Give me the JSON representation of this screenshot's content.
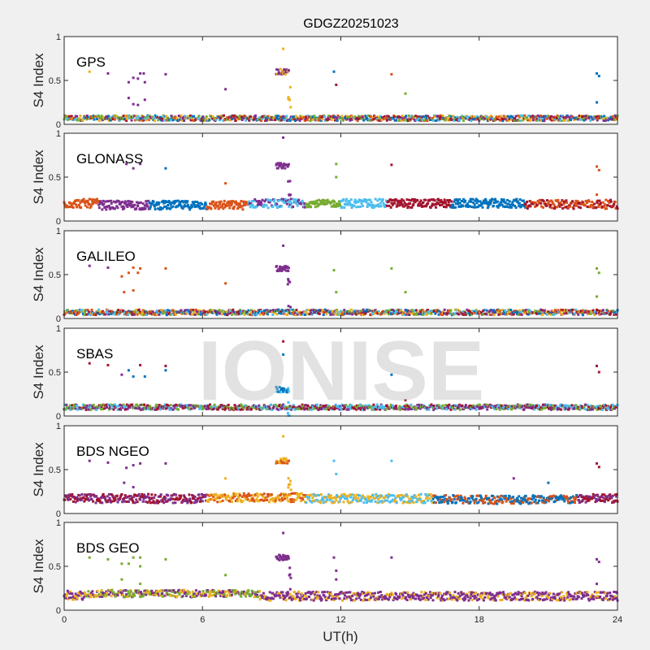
{
  "chart_data": {
    "type": "scatter",
    "title": "GDGZ20251023",
    "xlabel": "UT(h)",
    "ylabel": "S4 Index",
    "xlim": [
      0,
      24
    ],
    "ylim": [
      0,
      1
    ],
    "xticks": [
      "0",
      "6",
      "12",
      "18",
      "24"
    ],
    "yticks": [
      "0",
      "0.5",
      "1"
    ],
    "watermark": "IONISE",
    "colors": {
      "blue": "#0072BD",
      "orange": "#D95319",
      "yellow": "#EDB120",
      "purple": "#7E2F8E",
      "green": "#77AC30",
      "cyan": "#4DBEEE",
      "red": "#A2142F"
    },
    "panels": [
      {
        "name": "GPS",
        "baseline": [
          {
            "from": 0,
            "to": 24,
            "level": 0.07,
            "spread": 0.03,
            "colors": [
              "blue",
              "orange",
              "yellow",
              "purple",
              "green",
              "cyan",
              "red"
            ]
          }
        ],
        "outliers": [
          [
            1.1,
            0.6,
            "yellow"
          ],
          [
            2.8,
            0.48,
            "purple"
          ],
          [
            3.0,
            0.53,
            "purple"
          ],
          [
            3.2,
            0.52,
            "purple"
          ],
          [
            3.3,
            0.58,
            "purple"
          ],
          [
            3.45,
            0.58,
            "purple"
          ],
          [
            3.5,
            0.48,
            "purple"
          ],
          [
            3.5,
            0.28,
            "purple"
          ],
          [
            2.8,
            0.3,
            "purple"
          ],
          [
            3.0,
            0.23,
            "purple"
          ],
          [
            3.2,
            0.22,
            "purple"
          ],
          [
            1.9,
            0.58,
            "purple"
          ],
          [
            4.4,
            0.57,
            "purple"
          ],
          [
            7.0,
            0.4,
            "purple"
          ],
          [
            9.5,
            0.86,
            "yellow"
          ],
          [
            11.7,
            0.6,
            "blue"
          ],
          [
            11.8,
            0.45,
            "red"
          ],
          [
            14.2,
            0.57,
            "orange"
          ],
          [
            14.8,
            0.35,
            "green"
          ],
          [
            23.1,
            0.58,
            "blue"
          ],
          [
            23.2,
            0.55,
            "blue"
          ],
          [
            23.1,
            0.25,
            "blue"
          ]
        ],
        "event": {
          "from": 9.2,
          "to": 9.75,
          "level": 0.6,
          "colors": [
            "yellow",
            "purple"
          ]
        }
      },
      {
        "name": "GLONASS",
        "baseline": [
          {
            "from": 0,
            "to": 1.5,
            "level": 0.2,
            "spread": 0.05,
            "colors": [
              "orange"
            ]
          },
          {
            "from": 1.5,
            "to": 3.7,
            "level": 0.18,
            "spread": 0.05,
            "colors": [
              "purple"
            ]
          },
          {
            "from": 3.7,
            "to": 6.2,
            "level": 0.18,
            "spread": 0.05,
            "colors": [
              "blue"
            ]
          },
          {
            "from": 6.2,
            "to": 8.0,
            "level": 0.18,
            "spread": 0.05,
            "colors": [
              "orange"
            ]
          },
          {
            "from": 8.0,
            "to": 10.5,
            "level": 0.2,
            "spread": 0.05,
            "colors": [
              "purple",
              "cyan"
            ]
          },
          {
            "from": 10.5,
            "to": 12.0,
            "level": 0.2,
            "spread": 0.04,
            "colors": [
              "green"
            ]
          },
          {
            "from": 12.0,
            "to": 14.0,
            "level": 0.2,
            "spread": 0.05,
            "colors": [
              "cyan"
            ]
          },
          {
            "from": 14.0,
            "to": 16.8,
            "level": 0.2,
            "spread": 0.05,
            "colors": [
              "red"
            ]
          },
          {
            "from": 16.8,
            "to": 20.0,
            "level": 0.2,
            "spread": 0.05,
            "colors": [
              "blue"
            ]
          },
          {
            "from": 20.0,
            "to": 24,
            "level": 0.19,
            "spread": 0.05,
            "colors": [
              "orange",
              "red"
            ]
          }
        ],
        "outliers": [
          [
            2.7,
            0.65,
            "purple"
          ],
          [
            3.0,
            0.6,
            "purple"
          ],
          [
            3.3,
            0.65,
            "purple"
          ],
          [
            4.4,
            0.6,
            "blue"
          ],
          [
            7.0,
            0.43,
            "orange"
          ],
          [
            9.5,
            0.95,
            "purple"
          ],
          [
            11.8,
            0.65,
            "green"
          ],
          [
            11.8,
            0.5,
            "green"
          ],
          [
            14.2,
            0.64,
            "red"
          ],
          [
            23.1,
            0.62,
            "orange"
          ],
          [
            23.2,
            0.58,
            "orange"
          ],
          [
            23.1,
            0.3,
            "orange"
          ]
        ],
        "event": {
          "from": 9.2,
          "to": 9.75,
          "level": 0.63,
          "colors": [
            "purple"
          ]
        }
      },
      {
        "name": "GALILEO",
        "baseline": [
          {
            "from": 0,
            "to": 24,
            "level": 0.07,
            "spread": 0.03,
            "colors": [
              "blue",
              "orange",
              "yellow",
              "purple",
              "green",
              "cyan",
              "red"
            ]
          }
        ],
        "outliers": [
          [
            1.1,
            0.6,
            "purple"
          ],
          [
            1.9,
            0.58,
            "purple"
          ],
          [
            2.5,
            0.48,
            "orange"
          ],
          [
            2.8,
            0.52,
            "orange"
          ],
          [
            3.0,
            0.58,
            "orange"
          ],
          [
            3.2,
            0.52,
            "orange"
          ],
          [
            3.3,
            0.57,
            "orange"
          ],
          [
            2.6,
            0.3,
            "orange"
          ],
          [
            3.0,
            0.32,
            "orange"
          ],
          [
            4.4,
            0.57,
            "orange"
          ],
          [
            7.0,
            0.4,
            "orange"
          ],
          [
            9.5,
            0.83,
            "purple"
          ],
          [
            11.7,
            0.55,
            "green"
          ],
          [
            11.8,
            0.3,
            "green"
          ],
          [
            14.2,
            0.57,
            "green"
          ],
          [
            14.8,
            0.3,
            "green"
          ],
          [
            23.1,
            0.57,
            "green"
          ],
          [
            23.2,
            0.52,
            "green"
          ],
          [
            23.1,
            0.25,
            "green"
          ]
        ],
        "event": {
          "from": 9.2,
          "to": 9.75,
          "level": 0.57,
          "colors": [
            "purple"
          ]
        }
      },
      {
        "name": "SBAS",
        "baseline": [
          {
            "from": 0,
            "to": 24,
            "level": 0.1,
            "spread": 0.03,
            "colors": [
              "green",
              "red",
              "purple",
              "cyan"
            ]
          }
        ],
        "outliers": [
          [
            1.1,
            0.6,
            "red"
          ],
          [
            1.9,
            0.58,
            "red"
          ],
          [
            2.5,
            0.47,
            "purple"
          ],
          [
            2.8,
            0.52,
            "blue"
          ],
          [
            3.0,
            0.45,
            "blue"
          ],
          [
            3.3,
            0.58,
            "red"
          ],
          [
            3.5,
            0.45,
            "blue"
          ],
          [
            4.4,
            0.52,
            "blue"
          ],
          [
            4.4,
            0.57,
            "red"
          ],
          [
            9.5,
            0.85,
            "red"
          ],
          [
            9.5,
            0.7,
            "blue"
          ],
          [
            14.2,
            0.47,
            "blue"
          ],
          [
            14.8,
            0.18,
            "red"
          ],
          [
            23.1,
            0.57,
            "red"
          ],
          [
            23.2,
            0.5,
            "red"
          ]
        ],
        "event": {
          "from": 9.2,
          "to": 9.75,
          "level": 0.3,
          "colors": [
            "cyan",
            "blue"
          ]
        }
      },
      {
        "name": "BDS NGEO",
        "baseline": [
          {
            "from": 0,
            "to": 6.2,
            "level": 0.17,
            "spread": 0.05,
            "colors": [
              "purple",
              "red"
            ]
          },
          {
            "from": 6.2,
            "to": 10.5,
            "level": 0.18,
            "spread": 0.05,
            "colors": [
              "yellow",
              "orange"
            ]
          },
          {
            "from": 10.5,
            "to": 16.0,
            "level": 0.17,
            "spread": 0.05,
            "colors": [
              "cyan",
              "yellow"
            ]
          },
          {
            "from": 16.0,
            "to": 20.0,
            "level": 0.16,
            "spread": 0.05,
            "colors": [
              "orange",
              "blue"
            ]
          },
          {
            "from": 20.0,
            "to": 22.3,
            "level": 0.16,
            "spread": 0.05,
            "colors": [
              "blue",
              "orange"
            ]
          },
          {
            "from": 22.3,
            "to": 24,
            "level": 0.17,
            "spread": 0.05,
            "colors": [
              "red",
              "purple"
            ]
          }
        ],
        "outliers": [
          [
            1.1,
            0.6,
            "purple"
          ],
          [
            1.9,
            0.58,
            "purple"
          ],
          [
            2.7,
            0.52,
            "purple"
          ],
          [
            3.0,
            0.55,
            "purple"
          ],
          [
            3.3,
            0.57,
            "purple"
          ],
          [
            2.6,
            0.35,
            "purple"
          ],
          [
            3.0,
            0.3,
            "purple"
          ],
          [
            4.4,
            0.57,
            "purple"
          ],
          [
            7.0,
            0.4,
            "yellow"
          ],
          [
            9.5,
            0.88,
            "yellow"
          ],
          [
            11.7,
            0.6,
            "cyan"
          ],
          [
            11.8,
            0.45,
            "cyan"
          ],
          [
            14.2,
            0.6,
            "cyan"
          ],
          [
            19.5,
            0.4,
            "purple"
          ],
          [
            21.0,
            0.35,
            "blue"
          ],
          [
            23.1,
            0.57,
            "red"
          ],
          [
            23.2,
            0.53,
            "red"
          ]
        ],
        "event": {
          "from": 9.2,
          "to": 9.75,
          "level": 0.6,
          "colors": [
            "yellow",
            "orange"
          ]
        }
      },
      {
        "name": "BDS GEO",
        "baseline": [
          {
            "from": 0,
            "to": 1.0,
            "level": 0.17,
            "spread": 0.05,
            "colors": [
              "purple",
              "yellow"
            ]
          },
          {
            "from": 1.0,
            "to": 8.5,
            "level": 0.19,
            "spread": 0.04,
            "colors": [
              "green",
              "purple",
              "yellow"
            ]
          },
          {
            "from": 8.5,
            "to": 24,
            "level": 0.16,
            "spread": 0.05,
            "colors": [
              "purple",
              "purple",
              "yellow"
            ]
          }
        ],
        "outliers": [
          [
            1.1,
            0.6,
            "green"
          ],
          [
            1.9,
            0.58,
            "green"
          ],
          [
            2.5,
            0.53,
            "green"
          ],
          [
            2.5,
            0.35,
            "green"
          ],
          [
            2.8,
            0.53,
            "green"
          ],
          [
            3.0,
            0.6,
            "green"
          ],
          [
            3.3,
            0.6,
            "green"
          ],
          [
            3.3,
            0.5,
            "green"
          ],
          [
            3.3,
            0.3,
            "green"
          ],
          [
            4.4,
            0.58,
            "green"
          ],
          [
            7.0,
            0.4,
            "green"
          ],
          [
            9.5,
            0.88,
            "purple"
          ],
          [
            11.7,
            0.6,
            "purple"
          ],
          [
            11.8,
            0.45,
            "purple"
          ],
          [
            11.8,
            0.35,
            "purple"
          ],
          [
            14.2,
            0.6,
            "purple"
          ],
          [
            23.1,
            0.58,
            "purple"
          ],
          [
            23.2,
            0.55,
            "purple"
          ],
          [
            23.1,
            0.3,
            "purple"
          ]
        ],
        "event": {
          "from": 9.2,
          "to": 9.75,
          "level": 0.6,
          "colors": [
            "purple"
          ]
        }
      }
    ]
  }
}
